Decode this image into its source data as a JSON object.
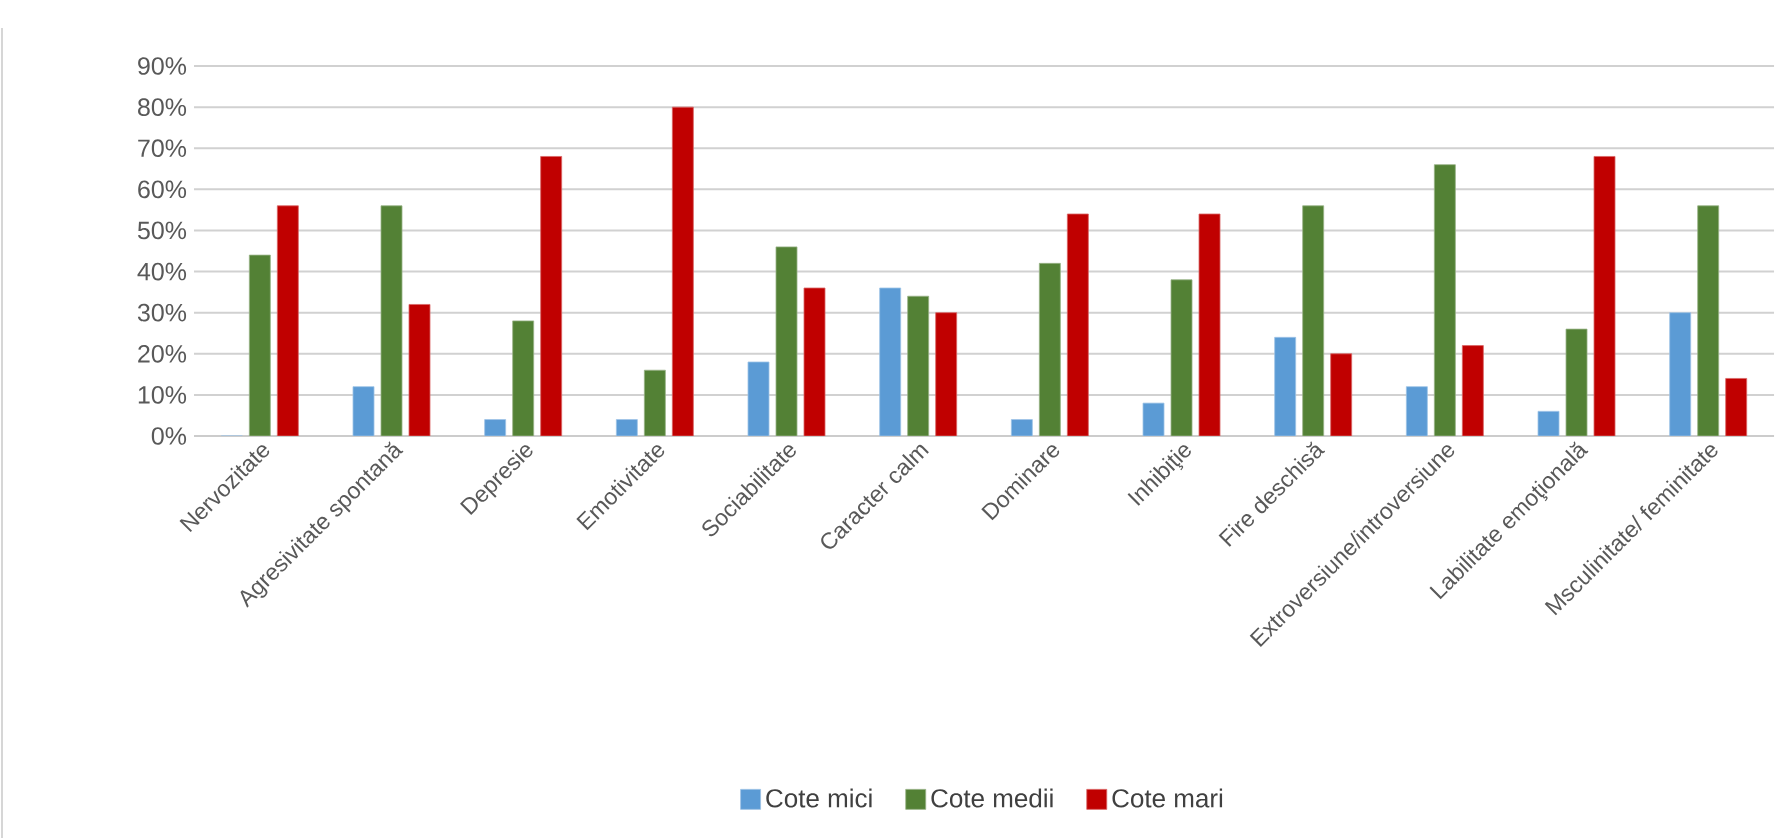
{
  "chart_data": {
    "type": "bar",
    "categories": [
      "Nervozitate",
      "Agresivitate  spontană",
      "Depresie",
      "Emotivitate",
      "Sociabilitate",
      "Caracter calm",
      "Dominare",
      "Inhibiţie",
      "Fire deschisă",
      "Extroversiune/introversiune",
      "Labilitate emoţională",
      "Msculinitate/ feminitate"
    ],
    "series": [
      {
        "name": "Cote mici",
        "color": "#5b9bd5",
        "values": [
          0,
          12,
          4,
          4,
          18,
          36,
          4,
          8,
          24,
          12,
          6,
          30
        ]
      },
      {
        "name": "Cote medii",
        "color": "#538135",
        "values": [
          44,
          56,
          28,
          16,
          46,
          34,
          42,
          38,
          56,
          66,
          26,
          56
        ]
      },
      {
        "name": "Cote mari",
        "color": "#c00000",
        "values": [
          56,
          32,
          68,
          80,
          36,
          30,
          54,
          54,
          20,
          22,
          68,
          14
        ]
      }
    ],
    "ylim": [
      0,
      90
    ],
    "yticks": [
      {
        "value": 0,
        "label": "0%"
      },
      {
        "value": 10,
        "label": "10%"
      },
      {
        "value": 20,
        "label": "20%"
      },
      {
        "value": 30,
        "label": "30%"
      },
      {
        "value": 40,
        "label": "40%"
      },
      {
        "value": 50,
        "label": "50%"
      },
      {
        "value": 60,
        "label": "60%"
      },
      {
        "value": 70,
        "label": "70%"
      },
      {
        "value": 80,
        "label": "80%"
      },
      {
        "value": 90,
        "label": "90%"
      }
    ],
    "grid": "y",
    "legend": "bottom"
  }
}
